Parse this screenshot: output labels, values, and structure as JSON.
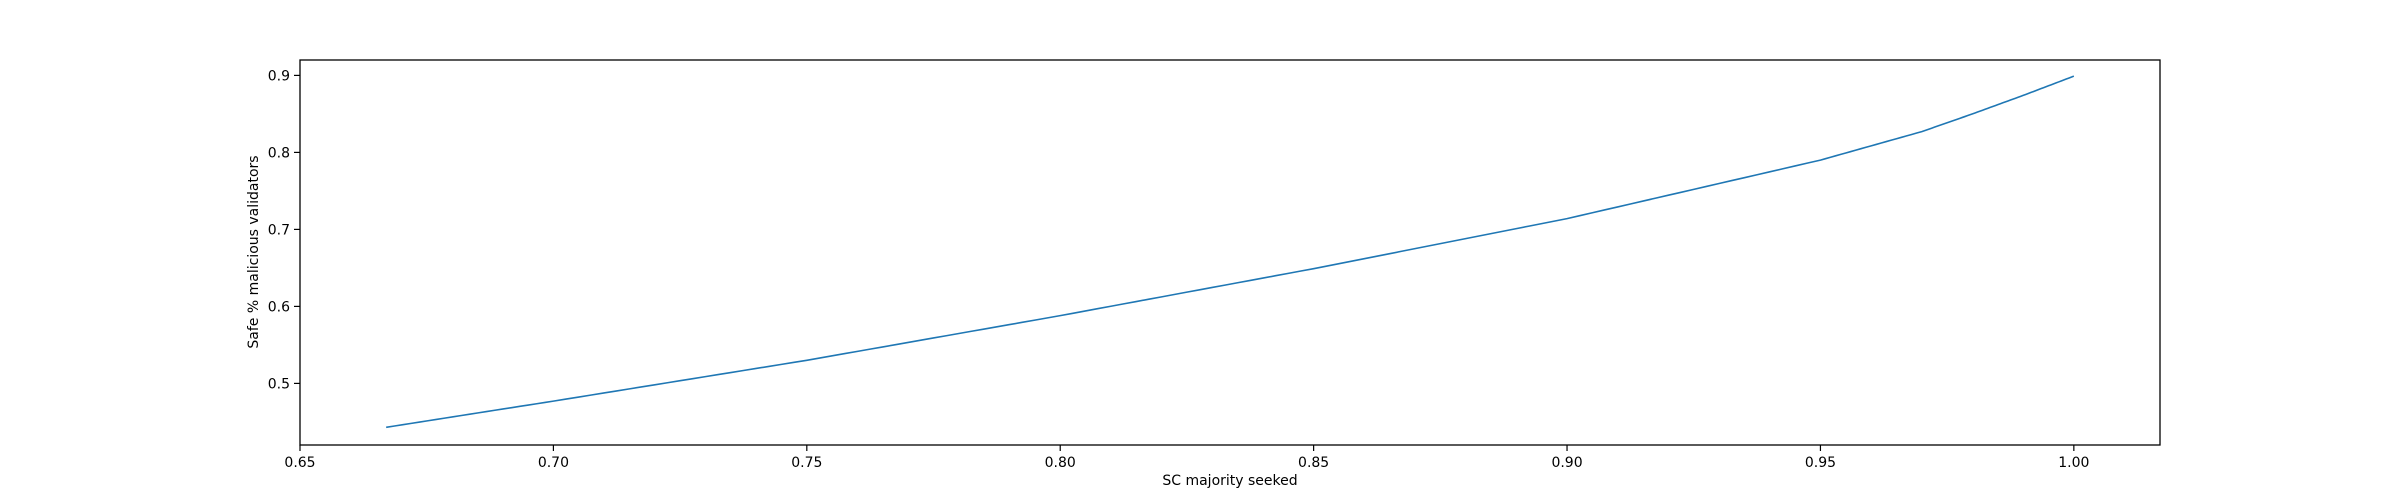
{
  "chart_data": {
    "type": "line",
    "title": "",
    "xlabel": "SC majority seeked",
    "ylabel": "Safe % malicious validators",
    "xlim": [
      0.65,
      1.017
    ],
    "ylim": [
      0.42,
      0.92
    ],
    "x_ticks": [
      0.65,
      0.7,
      0.75,
      0.8,
      0.85,
      0.9,
      0.95,
      1.0
    ],
    "x_tick_labels": [
      "0.65",
      "0.70",
      "0.75",
      "0.80",
      "0.85",
      "0.90",
      "0.95",
      "1.00"
    ],
    "y_ticks": [
      0.5,
      0.6,
      0.7,
      0.8,
      0.9
    ],
    "y_tick_labels": [
      "0.5",
      "0.6",
      "0.7",
      "0.8",
      "0.9"
    ],
    "grid": false,
    "legend": "none",
    "series": [
      {
        "color": "#1f77b4",
        "x": [
          0.667,
          0.7,
          0.75,
          0.8,
          0.85,
          0.9,
          0.95,
          0.97,
          0.98,
          0.99,
          1.0
        ],
        "y": [
          0.443,
          0.477,
          0.53,
          0.588,
          0.649,
          0.714,
          0.79,
          0.827,
          0.85,
          0.874,
          0.899
        ]
      }
    ]
  }
}
